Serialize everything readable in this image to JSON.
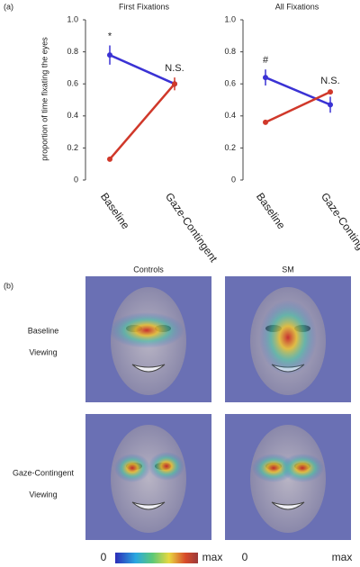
{
  "chart_data": [
    {
      "type": "line",
      "title": "First Fixations",
      "ylabel": "proportion of time fixating the eyes",
      "categories": [
        "Baseline",
        "Gaze-Contingent"
      ],
      "series": [
        {
          "color": "#3a32d4",
          "values": [
            0.78,
            0.6
          ],
          "errors": [
            0.06,
            0.02
          ]
        },
        {
          "color": "#d0382a",
          "values": [
            0.13,
            0.6
          ],
          "errors": [
            0.01,
            0.04
          ]
        }
      ],
      "annotations": [
        "*",
        "N.S."
      ],
      "ylim": [
        0,
        1.0
      ],
      "yticks": [
        0,
        0.2,
        0.4,
        0.6,
        0.8,
        {
          "value": 1.0,
          "label": "1.0"
        }
      ]
    },
    {
      "type": "line",
      "title": "All Fixations",
      "categories": [
        "Baseline",
        "Gaze-Contingent"
      ],
      "series": [
        {
          "color": "#3a32d4",
          "values": [
            0.64,
            0.47
          ],
          "errors": [
            0.05,
            0.05
          ]
        },
        {
          "color": "#d0382a",
          "values": [
            0.36,
            0.55
          ],
          "errors": [
            0.01,
            0.01
          ]
        }
      ],
      "annotations": [
        "#",
        "N.S."
      ],
      "ylim": [
        0,
        1.0
      ],
      "yticks": [
        0,
        0.2,
        0.4,
        0.6,
        0.8,
        {
          "value": 1.0,
          "label": "1.0"
        }
      ]
    }
  ],
  "panel_labels": [
    "(a)",
    "(b)"
  ],
  "heatmaps": {
    "columns": [
      "Controls",
      "SM"
    ],
    "rows": [
      [
        "Baseline",
        "Viewing"
      ],
      [
        "Gaze-Contingent",
        "Viewing"
      ]
    ],
    "scales": [
      {
        "min": "0",
        "max": "max"
      },
      {
        "min": "0",
        "max": "max"
      }
    ]
  }
}
